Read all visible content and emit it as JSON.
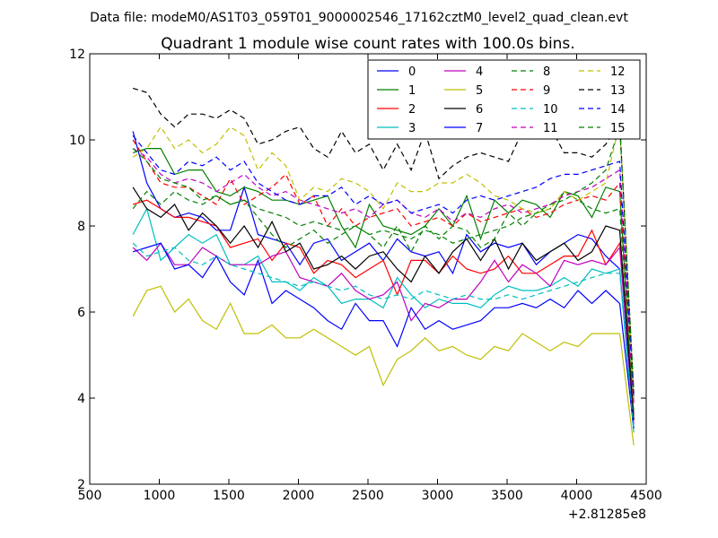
{
  "header": {
    "data_file": "Data file: modeM0/AS1T03_059T01_9000002546_17162cztM0_level2_quad_clean.evt"
  },
  "chart_data": {
    "type": "line",
    "title": "Quadrant 1 module wise count rates with 100.0s bins.",
    "xlabel": "",
    "ylabel": "",
    "xlim": [
      500,
      4500
    ],
    "ylim": [
      2,
      12
    ],
    "x_offset_label": "+2.81285e8",
    "xticks": [
      500,
      1000,
      1500,
      2000,
      2500,
      3000,
      3500,
      4000,
      4500
    ],
    "yticks": [
      2,
      4,
      6,
      8,
      10,
      12
    ],
    "legend_position": "top-right",
    "legend_columns": 4,
    "x": [
      810,
      910,
      1010,
      1110,
      1210,
      1310,
      1410,
      1510,
      1610,
      1710,
      1810,
      1910,
      2010,
      2110,
      2210,
      2310,
      2410,
      2510,
      2610,
      2710,
      2810,
      2910,
      3010,
      3110,
      3210,
      3310,
      3410,
      3510,
      3610,
      3710,
      3810,
      3910,
      4010,
      4110,
      4210,
      4310,
      4410
    ],
    "series": [
      {
        "name": "0",
        "color": "#0000ff",
        "dash": "solid",
        "values": [
          10.2,
          9.0,
          8.4,
          8.2,
          8.3,
          8.2,
          7.9,
          7.9,
          8.9,
          7.8,
          7.7,
          7.6,
          7.1,
          7.6,
          7.7,
          7.2,
          7.4,
          7.6,
          7.2,
          7.7,
          7.4,
          7.3,
          7.4,
          6.9,
          7.8,
          7.4,
          7.6,
          7.5,
          7.6,
          7.1,
          7.4,
          7.6,
          7.8,
          7.7,
          7.3,
          7.0,
          3.3
        ]
      },
      {
        "name": "1",
        "color": "#008000",
        "dash": "solid",
        "values": [
          9.7,
          9.8,
          9.8,
          9.2,
          9.3,
          9.3,
          8.8,
          8.7,
          8.9,
          8.8,
          8.6,
          8.6,
          8.5,
          8.6,
          8.7,
          8.0,
          7.5,
          8.5,
          8.0,
          7.9,
          7.8,
          8.0,
          8.4,
          8.0,
          8.7,
          7.7,
          8.6,
          8.3,
          8.6,
          8.5,
          8.2,
          8.8,
          8.7,
          8.2,
          8.9,
          8.8,
          3.5
        ]
      },
      {
        "name": "2",
        "color": "#ff0000",
        "dash": "solid",
        "values": [
          8.5,
          8.6,
          8.4,
          8.2,
          8.2,
          8.1,
          8.0,
          7.5,
          7.6,
          7.7,
          7.2,
          7.6,
          7.5,
          6.9,
          7.2,
          7.1,
          6.8,
          7.0,
          7.2,
          6.4,
          7.2,
          7.2,
          6.9,
          7.3,
          7.0,
          6.9,
          7.0,
          7.3,
          6.9,
          6.9,
          7.1,
          7.3,
          7.3,
          7.9,
          7.1,
          7.6,
          3.6
        ]
      },
      {
        "name": "3",
        "color": "#00bfbf",
        "dash": "solid",
        "values": [
          7.8,
          8.4,
          7.2,
          7.5,
          7.8,
          7.6,
          7.8,
          7.1,
          7.1,
          7.3,
          6.7,
          6.7,
          6.5,
          6.8,
          6.6,
          6.2,
          6.3,
          6.3,
          6.1,
          6.8,
          6.4,
          6.1,
          6.3,
          6.2,
          6.2,
          6.1,
          6.4,
          6.6,
          6.5,
          6.5,
          6.6,
          6.8,
          6.6,
          7.0,
          6.9,
          7.0,
          3.2
        ]
      },
      {
        "name": "4",
        "color": "#bf00bf",
        "dash": "solid",
        "values": [
          7.5,
          7.2,
          7.6,
          7.1,
          7.1,
          7.5,
          7.3,
          7.1,
          7.1,
          7.1,
          7.3,
          7.4,
          6.8,
          6.7,
          6.6,
          6.9,
          6.5,
          6.3,
          6.4,
          6.7,
          5.8,
          6.2,
          6.1,
          6.3,
          6.3,
          6.7,
          7.2,
          6.7,
          7.1,
          6.9,
          6.6,
          7.2,
          7.1,
          7.2,
          7.1,
          7.5,
          3.4
        ]
      },
      {
        "name": "5",
        "color": "#bfbf00",
        "dash": "solid",
        "values": [
          5.9,
          6.5,
          6.6,
          6.0,
          6.3,
          5.8,
          5.6,
          6.2,
          5.5,
          5.5,
          5.7,
          5.4,
          5.4,
          5.6,
          5.4,
          5.2,
          5.0,
          5.2,
          4.3,
          4.9,
          5.1,
          5.4,
          5.1,
          5.2,
          5.0,
          4.9,
          5.2,
          5.1,
          5.5,
          5.3,
          5.1,
          5.3,
          5.2,
          5.5,
          5.5,
          5.5,
          2.9
        ]
      },
      {
        "name": "6",
        "color": "#000000",
        "dash": "solid",
        "values": [
          8.9,
          8.4,
          8.2,
          8.5,
          7.9,
          8.3,
          8.0,
          7.6,
          8.0,
          7.5,
          8.1,
          7.4,
          7.6,
          7.0,
          7.1,
          7.3,
          7.0,
          7.3,
          7.4,
          7.0,
          6.7,
          7.3,
          6.9,
          7.4,
          7.7,
          7.2,
          7.7,
          7.0,
          7.6,
          7.2,
          7.4,
          7.6,
          7.2,
          7.4,
          8.0,
          7.9,
          3.5
        ]
      },
      {
        "name": "7",
        "color": "#0000ff",
        "dash": "solid",
        "values": [
          7.4,
          7.5,
          7.6,
          7.0,
          7.1,
          6.8,
          7.3,
          6.7,
          6.4,
          7.2,
          6.2,
          6.5,
          6.3,
          6.1,
          5.8,
          5.6,
          6.2,
          5.8,
          5.8,
          5.2,
          6.1,
          5.6,
          5.8,
          5.6,
          5.7,
          5.8,
          6.1,
          6.1,
          6.2,
          6.1,
          6.3,
          6.1,
          6.5,
          6.2,
          6.5,
          6.2,
          3.3
        ]
      },
      {
        "name": "8",
        "color": "#008000",
        "dash": "dashed",
        "values": [
          8.4,
          8.8,
          8.5,
          8.8,
          8.6,
          8.5,
          8.7,
          8.5,
          8.6,
          8.2,
          7.8,
          7.5,
          7.7,
          7.9,
          7.6,
          7.8,
          8.0,
          7.8,
          7.5,
          8.0,
          7.4,
          8.0,
          7.7,
          8.0,
          7.9,
          7.5,
          7.7,
          8.3,
          8.0,
          8.3,
          8.4,
          8.8,
          8.6,
          8.4,
          8.3,
          8.4,
          3.7
        ]
      },
      {
        "name": "9",
        "color": "#ff0000",
        "dash": "dashed",
        "values": [
          10.0,
          9.5,
          9.0,
          8.9,
          8.9,
          8.7,
          8.5,
          9.1,
          8.5,
          8.7,
          8.9,
          9.2,
          8.5,
          8.7,
          8.0,
          8.4,
          8.0,
          8.2,
          8.3,
          8.4,
          8.0,
          8.1,
          8.2,
          8.0,
          8.3,
          8.1,
          8.2,
          8.3,
          8.4,
          8.2,
          8.3,
          8.5,
          8.6,
          8.7,
          8.6,
          9.0,
          3.8
        ]
      },
      {
        "name": "10",
        "color": "#00bfbf",
        "dash": "dashed",
        "values": [
          7.6,
          7.3,
          7.4,
          7.5,
          7.2,
          7.1,
          7.3,
          7.1,
          7.0,
          6.9,
          6.8,
          6.7,
          6.6,
          6.7,
          6.6,
          6.5,
          6.6,
          6.4,
          6.3,
          6.4,
          6.3,
          6.5,
          6.4,
          6.3,
          6.4,
          6.3,
          6.3,
          6.4,
          6.3,
          6.4,
          6.5,
          6.6,
          6.7,
          6.8,
          6.9,
          6.9,
          3.3
        ]
      },
      {
        "name": "11",
        "color": "#bf00bf",
        "dash": "dashed",
        "values": [
          9.8,
          9.6,
          9.2,
          9.0,
          9.1,
          9.0,
          8.8,
          9.0,
          9.2,
          8.9,
          8.7,
          8.8,
          8.6,
          8.5,
          8.4,
          8.3,
          8.4,
          8.2,
          8.5,
          8.6,
          8.3,
          8.2,
          8.4,
          8.1,
          8.3,
          8.2,
          8.4,
          8.5,
          8.3,
          8.4,
          8.5,
          8.7,
          8.8,
          8.9,
          9.1,
          9.3,
          3.9
        ]
      },
      {
        "name": "12",
        "color": "#bfbf00",
        "dash": "dashed",
        "values": [
          9.6,
          9.8,
          10.3,
          9.8,
          10.0,
          9.7,
          9.9,
          10.3,
          10.1,
          9.3,
          9.7,
          9.4,
          8.6,
          8.9,
          8.8,
          9.1,
          9.0,
          8.8,
          8.4,
          9.0,
          8.8,
          8.8,
          9.0,
          9.0,
          9.2,
          9.0,
          8.7,
          8.6,
          8.4,
          8.3,
          8.4,
          8.8,
          8.6,
          8.8,
          9.0,
          10.4,
          4.0
        ]
      },
      {
        "name": "13",
        "color": "#000000",
        "dash": "dashed",
        "values": [
          11.2,
          11.1,
          10.6,
          10.3,
          10.6,
          10.6,
          10.5,
          10.7,
          10.5,
          9.9,
          10.0,
          10.2,
          10.3,
          9.8,
          9.6,
          10.2,
          9.7,
          9.9,
          9.3,
          9.9,
          9.3,
          10.2,
          9.1,
          9.4,
          9.6,
          9.7,
          9.6,
          9.5,
          10.2,
          10.0,
          10.3,
          9.7,
          9.7,
          9.6,
          9.9,
          10.4,
          4.1
        ]
      },
      {
        "name": "14",
        "color": "#0000ff",
        "dash": "dashed",
        "values": [
          10.1,
          9.7,
          9.3,
          9.2,
          9.5,
          9.4,
          9.6,
          9.3,
          9.5,
          9.0,
          8.8,
          8.6,
          8.5,
          8.7,
          8.7,
          8.9,
          8.5,
          8.7,
          8.5,
          8.6,
          8.3,
          8.4,
          8.5,
          8.3,
          8.6,
          8.7,
          8.6,
          8.7,
          8.8,
          8.9,
          9.1,
          9.2,
          9.2,
          9.3,
          9.4,
          9.5,
          4.0
        ]
      },
      {
        "name": "15",
        "color": "#008000",
        "dash": "dashed",
        "values": [
          9.8,
          9.5,
          9.1,
          9.0,
          8.9,
          8.6,
          8.7,
          8.5,
          8.6,
          8.4,
          8.3,
          8.2,
          8.0,
          8.1,
          8.0,
          7.9,
          8.0,
          7.8,
          7.9,
          7.8,
          7.7,
          7.9,
          7.8,
          7.6,
          7.7,
          7.8,
          7.9,
          8.0,
          8.2,
          8.3,
          8.5,
          8.6,
          8.8,
          9.0,
          9.3,
          10.3,
          4.2
        ]
      }
    ]
  }
}
